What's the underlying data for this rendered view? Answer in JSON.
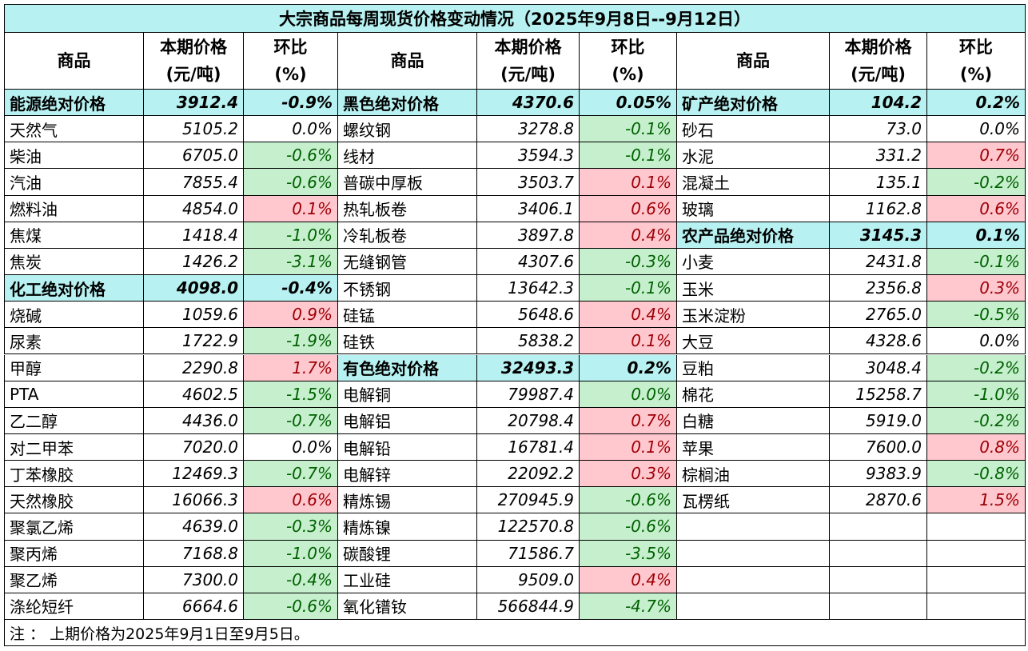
{
  "header": {
    "title": "大宗商品每周现货价格变动情况（2025年9月8日--9月12日）"
  },
  "columns": [
    [
      "商品"
    ],
    [
      "本期价格",
      "(元/吨)"
    ],
    [
      "环比",
      "(%)"
    ]
  ],
  "tones": {
    "group": {
      "fill": "#b8f1f1",
      "text": "#000000"
    },
    "u": {
      "fill": "#ffc7ce",
      "text": "#9c0006"
    },
    "d": {
      "fill": "#c6efce",
      "text": "#006100"
    },
    "f": {
      "fill": "#ffffff",
      "text": "#000000"
    }
  },
  "sections": [
    {
      "groups": [
        {
          "title": "能源绝对价格",
          "price": "3912.4",
          "change": "-0.9%",
          "items": [
            [
              "天然气",
              "5105.2",
              "0.0%",
              "f"
            ],
            [
              "柴油",
              "6705.0",
              "-0.6%",
              "d"
            ],
            [
              "汽油",
              "7855.4",
              "-0.6%",
              "d"
            ],
            [
              "燃料油",
              "4854.0",
              "0.1%",
              "u"
            ],
            [
              "焦煤",
              "1418.4",
              "-1.0%",
              "d"
            ],
            [
              "焦炭",
              "1426.2",
              "-3.1%",
              "d"
            ]
          ]
        },
        {
          "title": "化工绝对价格",
          "price": "4098.0",
          "change": "-0.4%",
          "items": [
            [
              "烧碱",
              "1059.6",
              "0.9%",
              "u"
            ],
            [
              "尿素",
              "1722.9",
              "-1.9%",
              "d"
            ],
            [
              "甲醇",
              "2290.8",
              "1.7%",
              "u"
            ],
            [
              "PTA",
              "4602.5",
              "-1.5%",
              "d"
            ],
            [
              "乙二醇",
              "4436.0",
              "-0.7%",
              "d"
            ],
            [
              "对二甲苯",
              "7020.0",
              "0.0%",
              "f"
            ],
            [
              "丁苯橡胶",
              "12469.3",
              "-0.7%",
              "d"
            ],
            [
              "天然橡胶",
              "16066.3",
              "0.6%",
              "u"
            ],
            [
              "聚氯乙烯",
              "4639.0",
              "-0.3%",
              "d"
            ],
            [
              "聚丙烯",
              "7168.8",
              "-1.0%",
              "d"
            ],
            [
              "聚乙烯",
              "7300.0",
              "-0.4%",
              "d"
            ],
            [
              "涤纶短纤",
              "6664.6",
              "-0.6%",
              "d"
            ]
          ]
        }
      ]
    },
    {
      "groups": [
        {
          "title": "黑色绝对价格",
          "price": "4370.6",
          "change": "0.05%",
          "items": [
            [
              "螺纹钢",
              "3278.8",
              "-0.1%",
              "d"
            ],
            [
              "线材",
              "3594.3",
              "-0.1%",
              "d"
            ],
            [
              "普碳中厚板",
              "3503.7",
              "0.1%",
              "u"
            ],
            [
              "热轧板卷",
              "3406.1",
              "0.6%",
              "u"
            ],
            [
              "冷轧板卷",
              "3897.8",
              "0.4%",
              "u"
            ],
            [
              "无缝钢管",
              "4307.6",
              "-0.3%",
              "d"
            ],
            [
              "不锈钢",
              "13642.3",
              "-0.1%",
              "d"
            ],
            [
              "硅锰",
              "5648.6",
              "0.4%",
              "u"
            ],
            [
              "硅铁",
              "5838.2",
              "0.1%",
              "u"
            ]
          ]
        },
        {
          "title": "有色绝对价格",
          "price": "32493.3",
          "change": "0.2%",
          "items": [
            [
              "电解铜",
              "79987.4",
              "0.0%",
              "d"
            ],
            [
              "电解铝",
              "20798.4",
              "0.7%",
              "u"
            ],
            [
              "电解铅",
              "16781.4",
              "0.1%",
              "u"
            ],
            [
              "电解锌",
              "22092.2",
              "0.3%",
              "u"
            ],
            [
              "精炼锡",
              "270945.9",
              "-0.6%",
              "d"
            ],
            [
              "精炼镍",
              "122570.8",
              "-0.6%",
              "d"
            ],
            [
              "碳酸锂",
              "71586.7",
              "-3.5%",
              "d"
            ],
            [
              "工业硅",
              "9509.0",
              "0.4%",
              "u"
            ],
            [
              "氧化镨钕",
              "566844.9",
              "-4.7%",
              "d"
            ]
          ]
        }
      ]
    },
    {
      "groups": [
        {
          "title": "矿产绝对价格",
          "price": "104.2",
          "change": "0.2%",
          "items": [
            [
              "砂石",
              "73.0",
              "0.0%",
              "f"
            ],
            [
              "水泥",
              "331.2",
              "0.7%",
              "u"
            ],
            [
              "混凝土",
              "135.1",
              "-0.2%",
              "d"
            ],
            [
              "玻璃",
              "1162.8",
              "0.6%",
              "u"
            ]
          ]
        },
        {
          "title": "农产品绝对价格",
          "price": "3145.3",
          "change": "0.1%",
          "items": [
            [
              "小麦",
              "2431.8",
              "-0.1%",
              "d"
            ],
            [
              "玉米",
              "2356.8",
              "0.3%",
              "u"
            ],
            [
              "玉米淀粉",
              "2765.0",
              "-0.5%",
              "d"
            ],
            [
              "大豆",
              "4328.6",
              "0.0%",
              "f"
            ],
            [
              "豆粕",
              "3048.4",
              "-0.2%",
              "d"
            ],
            [
              "棉花",
              "15258.7",
              "-1.0%",
              "d"
            ],
            [
              "白糖",
              "5919.0",
              "-0.2%",
              "d"
            ],
            [
              "苹果",
              "7600.0",
              "0.8%",
              "u"
            ],
            [
              "棕榈油",
              "9383.9",
              "-0.8%",
              "d"
            ],
            [
              "瓦楞纸",
              "2870.6",
              "1.5%",
              "u"
            ]
          ]
        }
      ]
    }
  ],
  "note": "注 ： 上期价格为2025年9月1日至9月5日。"
}
